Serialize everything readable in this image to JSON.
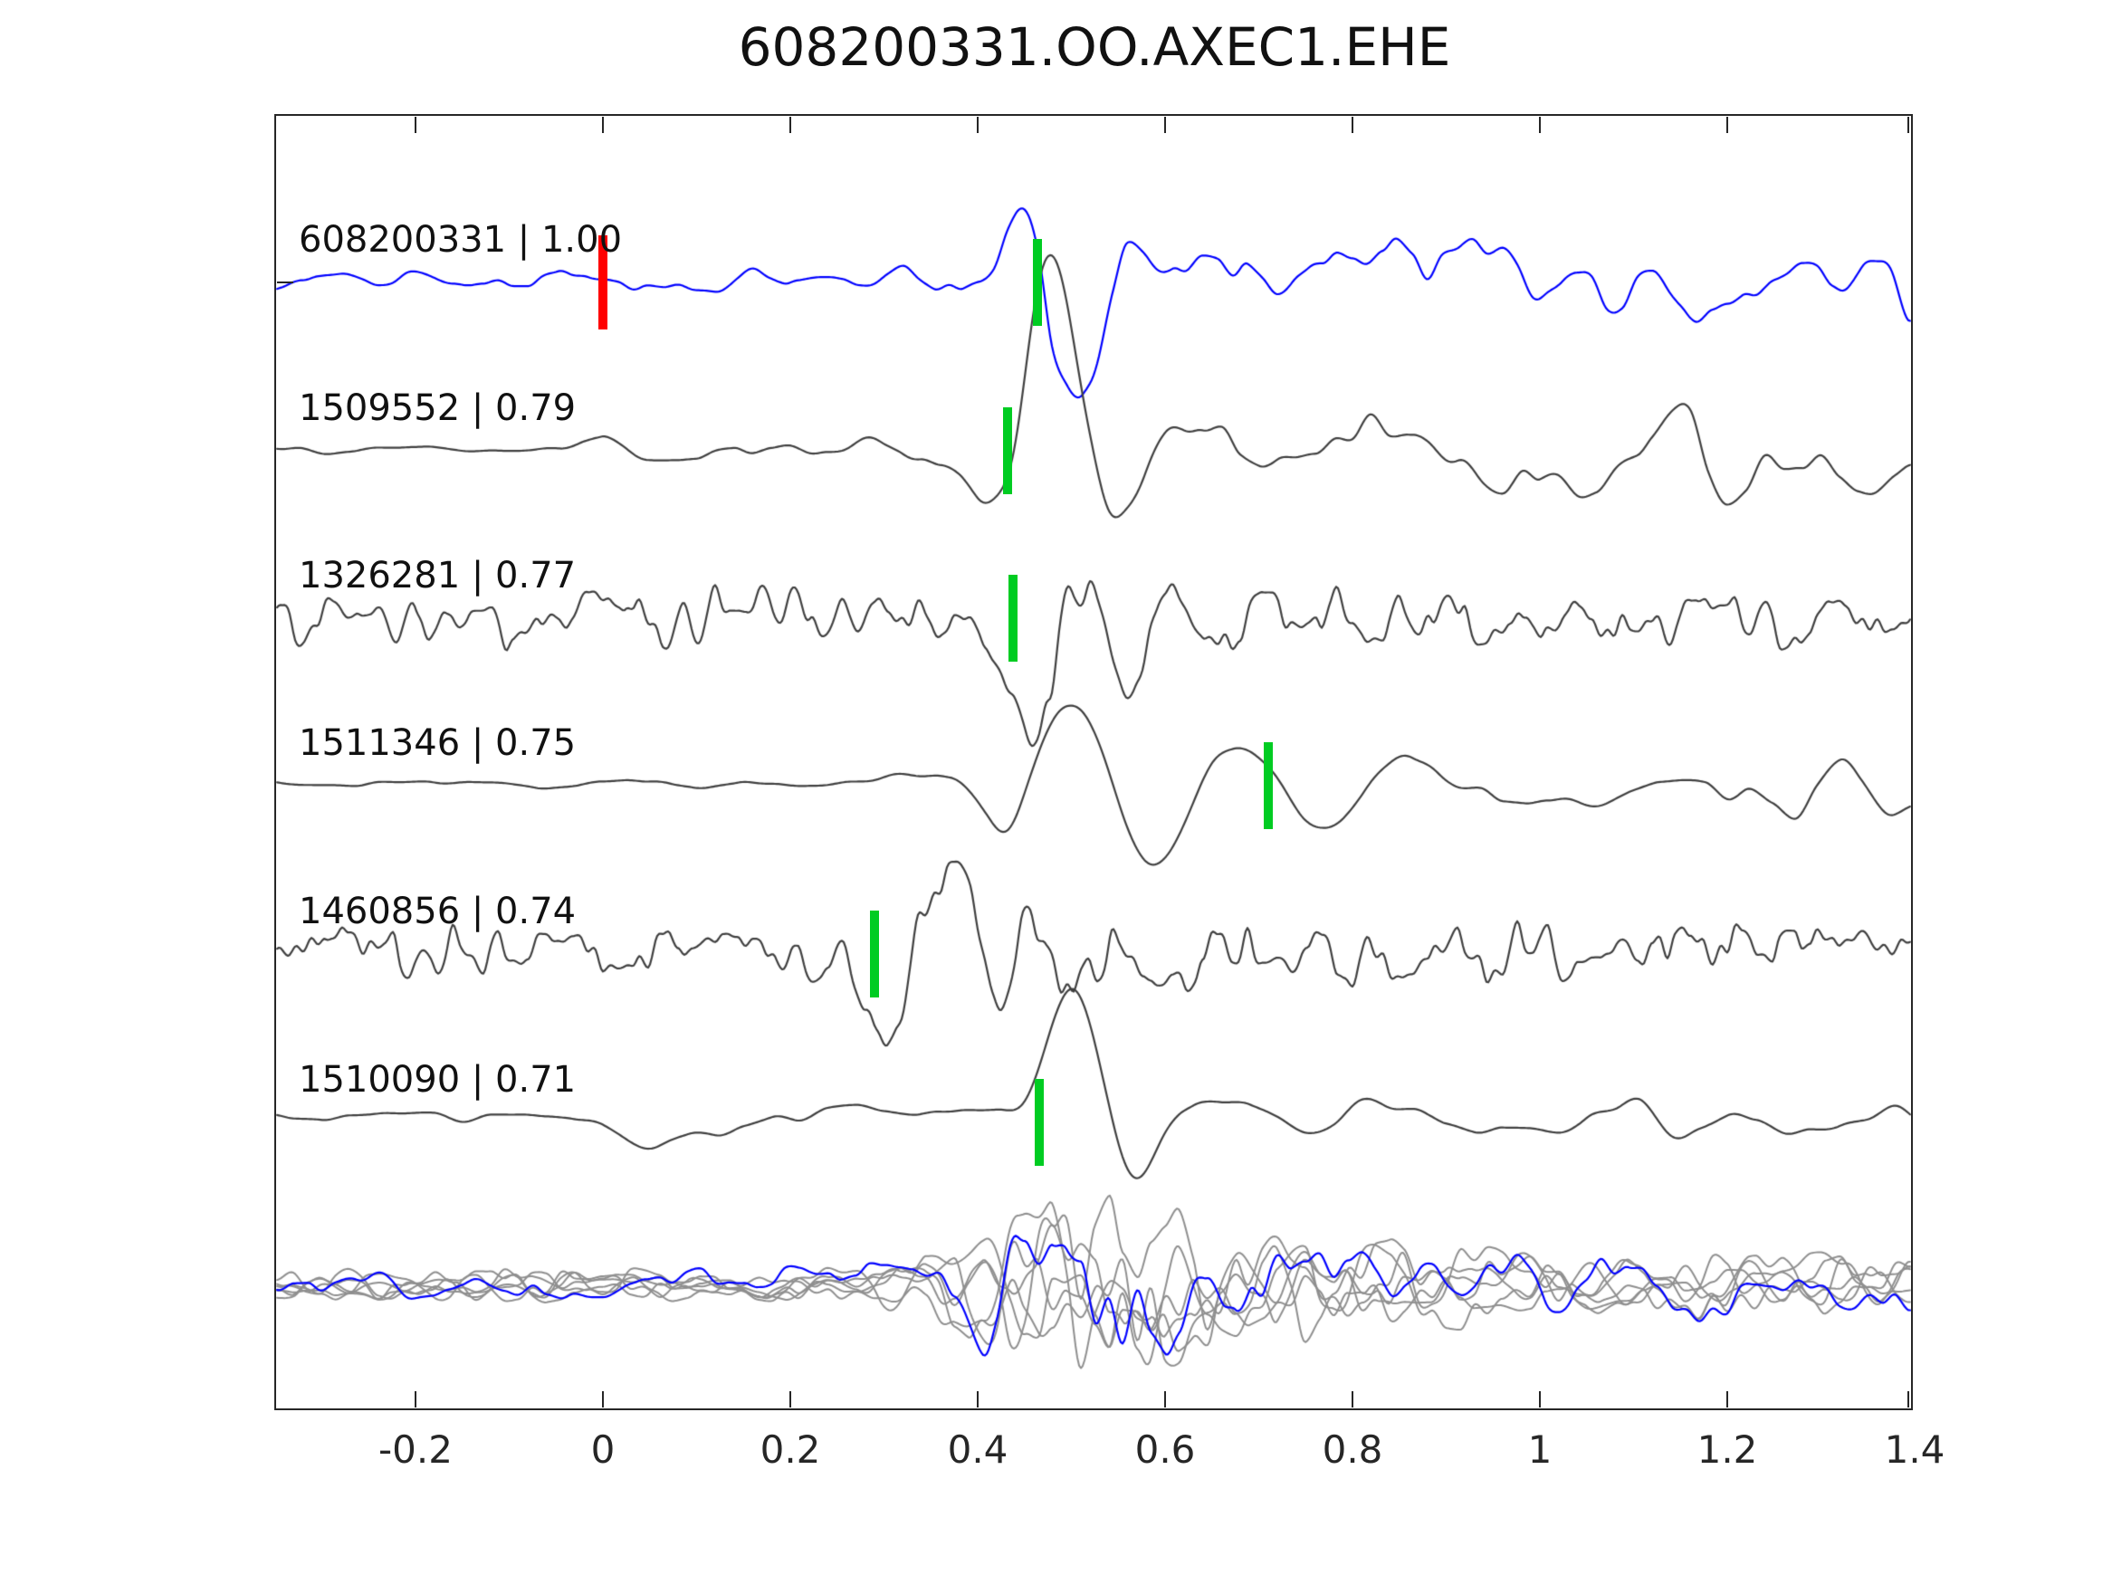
{
  "title": "608200331.OO.AXEC1.EHE",
  "colors": {
    "background": "#ffffff",
    "axis": "#262626",
    "text": "#111111",
    "reference_trace": "#0000ff",
    "template_trace": "#3f3f3f",
    "overlay_gray": "#8f8f8f",
    "overlay_highlight": "#0000ff",
    "origin_pick": "#ff0000",
    "detection_pick": "#00cc22"
  },
  "chart_data": {
    "type": "line",
    "title": "608200331.OO.AXEC1.EHE",
    "x_axis": {
      "range": [
        -0.348,
        1.4
      ],
      "grid": false,
      "ticks": [
        {
          "label": "-0.2",
          "t": -0.2
        },
        {
          "label": "0",
          "t": 0
        },
        {
          "label": "0.2",
          "t": 0.2
        },
        {
          "label": "0.4",
          "t": 0.4
        },
        {
          "label": "0.6",
          "t": 0.6
        },
        {
          "label": "0.8",
          "t": 0.8
        },
        {
          "label": "1",
          "t": 1
        },
        {
          "label": "1.2",
          "t": 1.2
        },
        {
          "label": "1.4",
          "t": 1.4
        }
      ]
    },
    "traces": [
      {
        "id": "608200331",
        "similarity": "1.00",
        "label": "608200331 | 1.00",
        "color": "#0000ff",
        "seed": 3,
        "picks": [
          {
            "type": "origin",
            "color": "#ff0000",
            "t": 0.0
          },
          {
            "type": "detection",
            "color": "#00cc22",
            "t": 0.464
          }
        ],
        "octaves": [
          {
            "wl": 0.04,
            "amp": 1
          },
          {
            "wl": 0.016,
            "amp": 0.3
          }
        ],
        "amp_profile": [
          [
            -0.348,
            14
          ],
          [
            0.274,
            14
          ],
          [
            0.381,
            20
          ],
          [
            0.439,
            30
          ],
          [
            0.477,
            45
          ],
          [
            0.516,
            45
          ],
          [
            1.4,
            45
          ]
        ],
        "events": [
          {
            "t": 0.458,
            "w": 0.021,
            "amp": 78
          },
          {
            "t": 0.5,
            "w": 0.025,
            "amp": -100
          }
        ]
      },
      {
        "id": "1509552",
        "similarity": "0.79",
        "label": "1509552 | 0.79",
        "color": "#3f3f3f",
        "seed": 7,
        "picks": [
          {
            "type": "detection",
            "color": "#00cc22",
            "t": 0.432
          }
        ],
        "octaves": [
          {
            "wl": 0.048,
            "amp": 1
          },
          {
            "wl": 0.02,
            "amp": 0.3
          }
        ],
        "amp_profile": [
          [
            -0.348,
            5
          ],
          [
            -0.044,
            5
          ],
          [
            0.0,
            16
          ],
          [
            0.381,
            16
          ],
          [
            0.574,
            30
          ],
          [
            0.709,
            52
          ],
          [
            1.4,
            48
          ]
        ],
        "events": [
          {
            "t": 0.424,
            "w": 0.024,
            "amp": -65
          },
          {
            "t": 0.477,
            "w": 0.025,
            "amp": 205
          },
          {
            "t": 0.552,
            "w": 0.029,
            "amp": -100
          },
          {
            "t": 0.613,
            "w": 0.034,
            "amp": 50
          },
          {
            "t": 0.68,
            "w": 0.035,
            "amp": -45
          }
        ]
      },
      {
        "id": "1326281",
        "similarity": "0.77",
        "label": "1326281 | 0.77",
        "color": "#3f3f3f",
        "seed": 11,
        "picks": [
          {
            "type": "detection",
            "color": "#00cc22",
            "t": 0.438
          }
        ],
        "octaves": [
          {
            "wl": 0.017,
            "amp": 1
          },
          {
            "wl": 0.008,
            "amp": 0.3
          }
        ],
        "amp_profile": [
          [
            -0.348,
            30
          ],
          [
            0.42,
            32
          ],
          [
            1.4,
            30
          ]
        ],
        "events": [
          {
            "t": 0.463,
            "w": 0.024,
            "amp": -112
          },
          {
            "t": 0.516,
            "w": 0.024,
            "amp": 78
          },
          {
            "t": 0.558,
            "w": 0.022,
            "amp": -95
          },
          {
            "t": 0.6,
            "w": 0.022,
            "amp": 62
          }
        ]
      },
      {
        "id": "1511346",
        "similarity": "0.75",
        "label": "1511346 | 0.75",
        "color": "#3f3f3f",
        "seed": 13,
        "picks": [
          {
            "type": "detection",
            "color": "#00cc22",
            "t": 0.71
          }
        ],
        "octaves": [
          {
            "wl": 0.053,
            "amp": 1
          },
          {
            "wl": 0.024,
            "amp": 0.3
          }
        ],
        "amp_profile": [
          [
            -0.348,
            7
          ],
          [
            0.226,
            8
          ],
          [
            0.323,
            13
          ],
          [
            0.758,
            11
          ],
          [
            0.806,
            30
          ],
          [
            1.4,
            32
          ]
        ],
        "events": [
          {
            "t": 0.432,
            "w": 0.024,
            "amp": -46
          },
          {
            "t": 0.511,
            "w": 0.037,
            "amp": 100
          },
          {
            "t": 0.585,
            "w": 0.039,
            "amp": -110
          },
          {
            "t": 0.672,
            "w": 0.043,
            "amp": 58
          },
          {
            "t": 0.767,
            "w": 0.034,
            "amp": -55
          },
          {
            "t": 0.86,
            "w": 0.04,
            "amp": 35
          }
        ]
      },
      {
        "id": "1460856",
        "similarity": "0.74",
        "label": "1460856 | 0.74",
        "color": "#3f3f3f",
        "seed": 17,
        "picks": [
          {
            "type": "detection",
            "color": "#00cc22",
            "t": 0.29
          }
        ],
        "octaves": [
          {
            "wl": 0.016,
            "amp": 1
          },
          {
            "wl": 0.008,
            "amp": 0.35
          }
        ],
        "amp_profile": [
          [
            -0.348,
            28
          ],
          [
            0.265,
            30
          ],
          [
            1.4,
            34
          ]
        ],
        "events": [
          {
            "t": 0.3,
            "w": 0.017,
            "amp": -112
          },
          {
            "t": 0.381,
            "w": 0.025,
            "amp": 118
          },
          {
            "t": 0.419,
            "w": 0.017,
            "amp": -88
          },
          {
            "t": 0.461,
            "w": 0.021,
            "amp": 64
          },
          {
            "t": 0.492,
            "w": 0.017,
            "amp": -52
          }
        ]
      },
      {
        "id": "1510090",
        "similarity": "0.71",
        "label": "1510090 | 0.71",
        "color": "#3f3f3f",
        "seed": 23,
        "picks": [
          {
            "type": "detection",
            "color": "#00cc22",
            "t": 0.466
          }
        ],
        "octaves": [
          {
            "wl": 0.068,
            "amp": 1
          },
          {
            "wl": 0.03,
            "amp": 0.3
          }
        ],
        "amp_profile": [
          [
            -0.348,
            16
          ],
          [
            0.371,
            18
          ],
          [
            0.448,
            24
          ],
          [
            1.4,
            40
          ]
        ],
        "events": [
          {
            "t": 0.052,
            "w": 0.029,
            "amp": -46
          },
          {
            "t": 0.502,
            "w": 0.029,
            "amp": 162
          },
          {
            "t": 0.562,
            "w": 0.029,
            "amp": -76
          },
          {
            "t": 0.686,
            "w": 0.043,
            "amp": 60
          },
          {
            "t": 0.738,
            "w": 0.034,
            "amp": -52
          }
        ]
      }
    ],
    "overlay": {
      "description": "all traces superimposed",
      "gray_color": "#8f8f8f",
      "highlight_color": "#0000ff",
      "octaves": [
        {
          "wl": 0.034,
          "amp": 1
        },
        {
          "wl": 0.015,
          "amp": 0.4
        }
      ],
      "amp_profile": [
        [
          -0.348,
          15
        ],
        [
          0.27,
          17
        ],
        [
          0.34,
          30
        ],
        [
          0.42,
          65
        ],
        [
          0.48,
          90
        ],
        [
          0.56,
          90
        ],
        [
          0.66,
          65
        ],
        [
          0.8,
          45
        ],
        [
          1.0,
          33
        ],
        [
          1.4,
          28
        ]
      ],
      "members": [
        {
          "seed": 31
        },
        {
          "seed": 37
        },
        {
          "seed": 41
        },
        {
          "seed": 43
        },
        {
          "seed": 47
        },
        {
          "seed": 53
        }
      ],
      "highlight_seed": 59
    }
  }
}
